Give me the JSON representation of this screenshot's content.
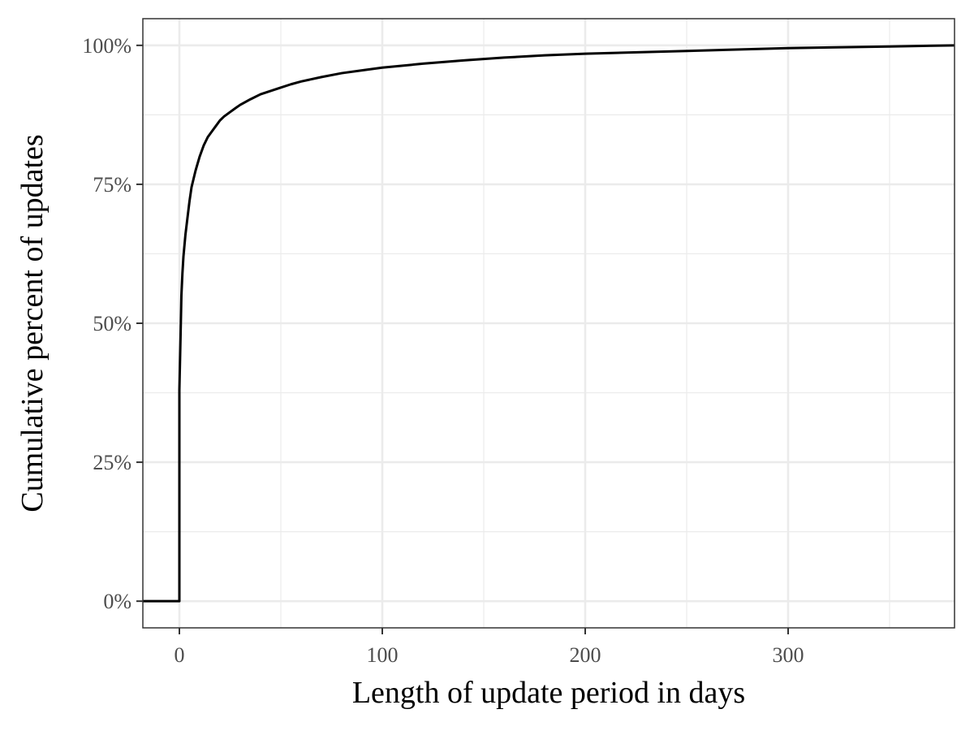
{
  "chart_data": {
    "type": "line",
    "title": "",
    "xlabel": "Length of update period in days",
    "ylabel": "Cumulative percent of updates",
    "xlim": [
      -18,
      382
    ],
    "ylim": [
      -0.048,
      1.048
    ],
    "x_ticks": [
      0,
      100,
      200,
      300
    ],
    "x_tick_labels": [
      "0",
      "100",
      "200",
      "300"
    ],
    "y_ticks": [
      0,
      0.25,
      0.5,
      0.75,
      1
    ],
    "y_tick_labels": [
      "0%",
      "25%",
      "50%",
      "75%",
      "100%"
    ],
    "grid": true,
    "legend": "none",
    "colors": {
      "line": "#000000",
      "grid": "#ebebeb",
      "panel_border": "#333333",
      "tick_text": "#4d4d4d"
    },
    "series": [
      {
        "x": [
          -18,
          0,
          0,
          0.3,
          0.6,
          1,
          1.5,
          2,
          3,
          4,
          5,
          6,
          7,
          8,
          10,
          12,
          14,
          16,
          18,
          20,
          22,
          25,
          28,
          30,
          35,
          40,
          45,
          50,
          55,
          60,
          70,
          80,
          90,
          100,
          120,
          140,
          160,
          180,
          200,
          250,
          300,
          350,
          382
        ],
        "y": [
          0,
          0,
          0.38,
          0.43,
          0.48,
          0.55,
          0.59,
          0.62,
          0.66,
          0.69,
          0.72,
          0.745,
          0.76,
          0.775,
          0.8,
          0.82,
          0.835,
          0.845,
          0.855,
          0.865,
          0.872,
          0.88,
          0.888,
          0.893,
          0.903,
          0.912,
          0.918,
          0.924,
          0.93,
          0.935,
          0.943,
          0.95,
          0.955,
          0.96,
          0.967,
          0.973,
          0.978,
          0.982,
          0.985,
          0.99,
          0.995,
          0.998,
          1.0
        ]
      }
    ]
  }
}
